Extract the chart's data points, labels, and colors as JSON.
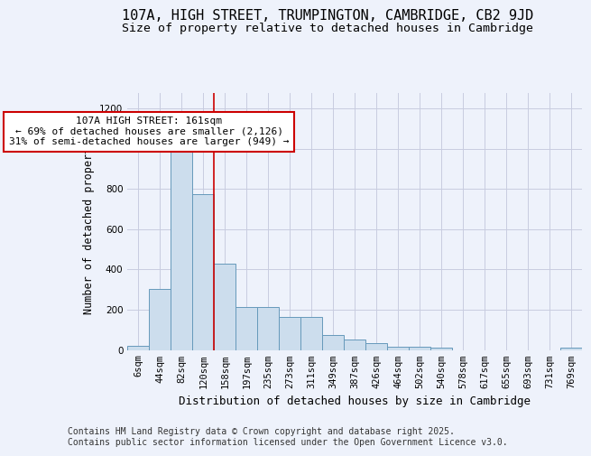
{
  "title": "107A, HIGH STREET, TRUMPINGTON, CAMBRIDGE, CB2 9JD",
  "subtitle": "Size of property relative to detached houses in Cambridge",
  "xlabel": "Distribution of detached houses by size in Cambridge",
  "ylabel": "Number of detached properties",
  "categories": [
    "6sqm",
    "44sqm",
    "82sqm",
    "120sqm",
    "158sqm",
    "197sqm",
    "235sqm",
    "273sqm",
    "311sqm",
    "349sqm",
    "387sqm",
    "426sqm",
    "464sqm",
    "502sqm",
    "540sqm",
    "578sqm",
    "617sqm",
    "655sqm",
    "693sqm",
    "731sqm",
    "769sqm"
  ],
  "values": [
    20,
    305,
    985,
    775,
    430,
    215,
    215,
    165,
    165,
    75,
    50,
    35,
    15,
    15,
    10,
    0,
    0,
    0,
    0,
    0,
    10
  ],
  "bar_color": "#ccdded",
  "bar_edge_color": "#6699bb",
  "background_color": "#eef2fb",
  "grid_color": "#c8cce0",
  "vline_color": "#cc0000",
  "vline_x": 3.5,
  "annotation_text": "107A HIGH STREET: 161sqm\n← 69% of detached houses are smaller (2,126)\n31% of semi-detached houses are larger (949) →",
  "annotation_box_color": "#ffffff",
  "annotation_box_edge": "#cc0000",
  "annotation_fontsize": 8.0,
  "ylim": [
    0,
    1280
  ],
  "yticks": [
    0,
    200,
    400,
    600,
    800,
    1000,
    1200
  ],
  "title_fontsize": 11,
  "subtitle_fontsize": 9.5,
  "xlabel_fontsize": 9,
  "ylabel_fontsize": 8.5,
  "tick_fontsize": 7.5,
  "footer_text": "Contains HM Land Registry data © Crown copyright and database right 2025.\nContains public sector information licensed under the Open Government Licence v3.0.",
  "footer_fontsize": 7.0
}
